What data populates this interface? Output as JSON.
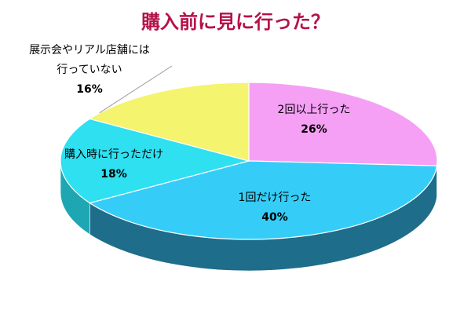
{
  "chart_data": {
    "type": "pie",
    "title": "購入前に見に行った？",
    "three_d": true,
    "start_angle_deg": 90,
    "direction": "clockwise",
    "slices": [
      {
        "label": "2回以上行った",
        "value": 26,
        "value_label": "26%",
        "color": "#f5a0f5"
      },
      {
        "label": "1回だけ行った",
        "value": 40,
        "value_label": "40%",
        "color": "#35cdf7"
      },
      {
        "label": "購入時に行っただけ",
        "value": 18,
        "value_label": "18%",
        "color": "#2ee0f0"
      },
      {
        "label": "展示会やリアル店舗には行っていない",
        "value": 16,
        "value_label": "16%",
        "color": "#f4f46e"
      }
    ],
    "label_lines": {
      "2回以上行った": [
        "2回以上行った"
      ],
      "1回だけ行った": [
        "1回だけ行った"
      ],
      "購入時に行っただけ": [
        "購入時に行っただけ"
      ],
      "展示会やリアル店舗には行っていない": [
        "展示会やリアル店舗には",
        "行っていない"
      ]
    },
    "side_colors": {
      "0": "#c07cc0",
      "1": "#1e6d8a",
      "2": "#1ea6b2",
      "3": "#c4c44e"
    }
  }
}
